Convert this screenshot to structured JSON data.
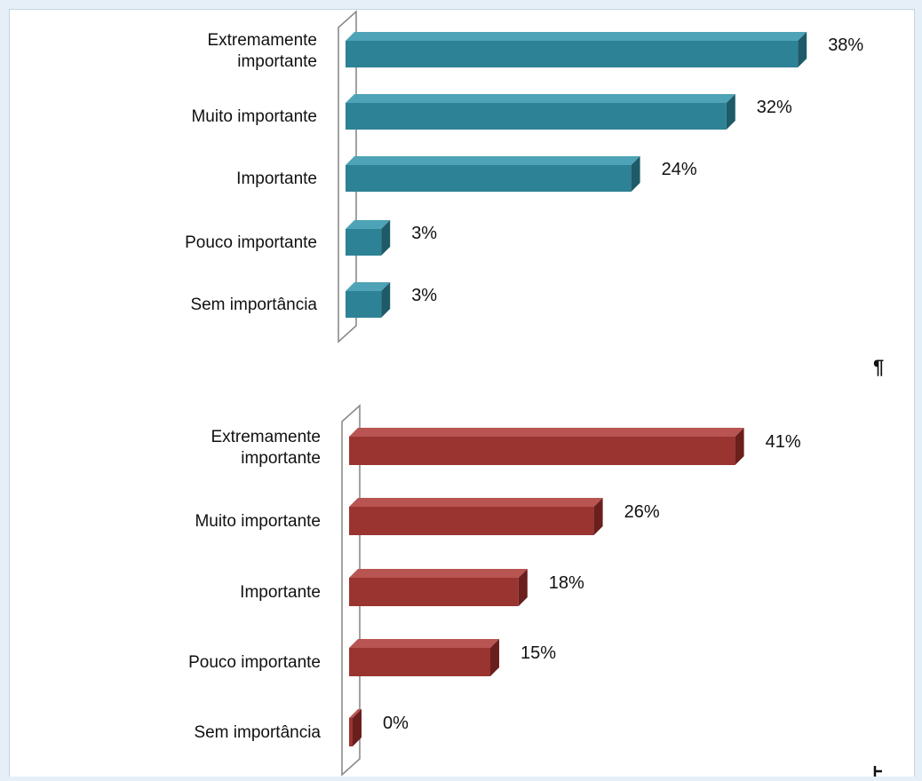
{
  "document": {
    "paragraph_mark": "¶"
  },
  "colors": {
    "chart1_bar": "#2e8295",
    "chart1_bar_dark": "#1e5a68",
    "chart1_bar_top": "#4fa3b6",
    "chart2_bar": "#9a3431",
    "chart2_bar_dark": "#6a1f1d",
    "chart2_bar_top": "#b85552"
  },
  "chart_data": [
    {
      "type": "bar",
      "orientation": "horizontal",
      "categories": [
        [
          "Extremamente",
          "importante"
        ],
        [
          "Muito importante"
        ],
        [
          "Importante"
        ],
        [
          "Pouco importante"
        ],
        [
          "Sem importância"
        ]
      ],
      "values": [
        38,
        32,
        24,
        3,
        3
      ],
      "value_labels": [
        "38%",
        "32%",
        "24%",
        "3%",
        "3%"
      ],
      "title": "",
      "xlabel": "",
      "ylabel": "",
      "xlim": [
        0,
        40
      ],
      "grid": false,
      "legend": false
    },
    {
      "type": "bar",
      "orientation": "horizontal",
      "categories": [
        [
          "Extremamente",
          "importante"
        ],
        [
          "Muito importante"
        ],
        [
          "Importante"
        ],
        [
          "Pouco importante"
        ],
        [
          "Sem importância"
        ]
      ],
      "values": [
        41,
        26,
        18,
        15,
        0
      ],
      "value_labels": [
        "41%",
        "26%",
        "18%",
        "15%",
        "0%"
      ],
      "title": "",
      "xlabel": "",
      "ylabel": "",
      "xlim": [
        0,
        44
      ],
      "grid": false,
      "legend": false
    }
  ]
}
